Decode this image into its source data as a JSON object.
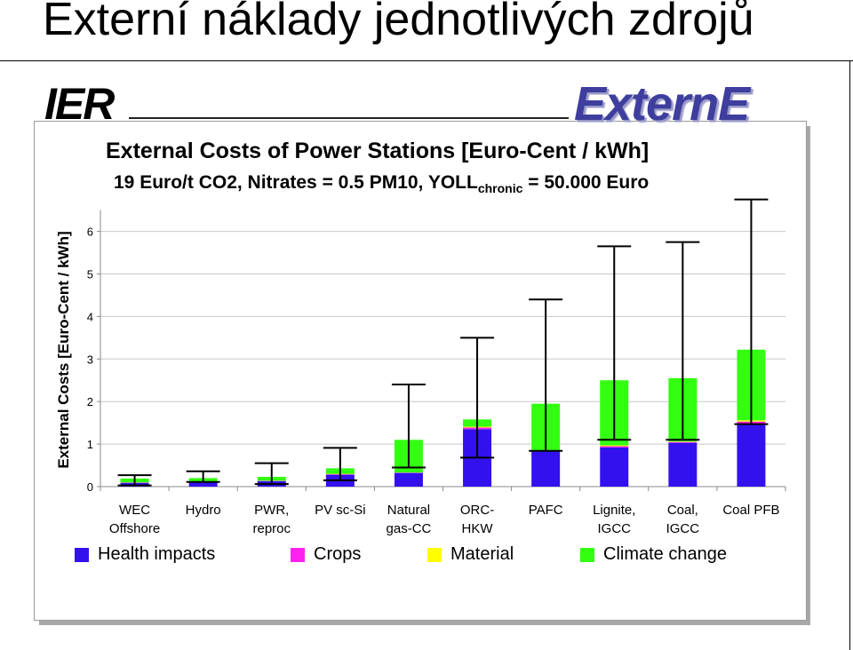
{
  "slide_title": "Externí náklady jednotlivých zdrojů",
  "logos": {
    "left": "IER",
    "right": "ExternE"
  },
  "chart_data": {
    "type": "bar",
    "stacked": true,
    "title": "External Costs of Power Stations [Euro-Cent / kWh]",
    "subtitle_main": "19 Euro/t CO2, Nitrates = 0.5 PM10, YOLL",
    "subtitle_sub": "chronic",
    "subtitle_end": " = 50.000 Euro",
    "ylabel": "External Costs [Euro-Cent / kWh]",
    "ylim": [
      0,
      6.5
    ],
    "yticks": [
      0,
      1,
      2,
      3,
      4,
      5,
      6
    ],
    "grid": true,
    "legend_position": "bottom",
    "categories": [
      [
        "WEC",
        "Offshore"
      ],
      [
        "Hydro"
      ],
      [
        "PWR,",
        "reproc"
      ],
      [
        "PV sc-Si"
      ],
      [
        "Natural",
        "gas-CC"
      ],
      [
        "ORC-",
        "HKW"
      ],
      [
        "PAFC"
      ],
      [
        "Lignite,",
        "IGCC"
      ],
      [
        "Coal,",
        "IGCC"
      ],
      [
        "Coal PFB"
      ]
    ],
    "series": [
      {
        "name": "Health impacts",
        "color": "#3311ee",
        "values": [
          0.09,
          0.1,
          0.13,
          0.28,
          0.32,
          1.35,
          0.85,
          0.92,
          1.03,
          1.48
        ]
      },
      {
        "name": "Crops",
        "color": "#ff22ee",
        "values": [
          0.005,
          0.005,
          0.005,
          0.01,
          0.01,
          0.04,
          0.0,
          0.03,
          0.02,
          0.05
        ]
      },
      {
        "name": "Material",
        "color": "#ffff00",
        "values": [
          0.005,
          0.005,
          0.005,
          0.01,
          0.0,
          0.02,
          0.0,
          0.02,
          0.01,
          0.03
        ]
      },
      {
        "name": "Climate change",
        "color": "#33ff11",
        "values": [
          0.09,
          0.09,
          0.09,
          0.13,
          0.77,
          0.17,
          1.1,
          1.53,
          1.49,
          1.66
        ]
      }
    ],
    "error_low": [
      0.03,
      0.11,
      0.06,
      0.15,
      0.45,
      0.68,
      0.84,
      1.1,
      1.1,
      1.47
    ],
    "error_high": [
      0.27,
      0.36,
      0.55,
      0.91,
      2.4,
      3.5,
      4.4,
      5.65,
      5.75,
      6.75
    ]
  }
}
